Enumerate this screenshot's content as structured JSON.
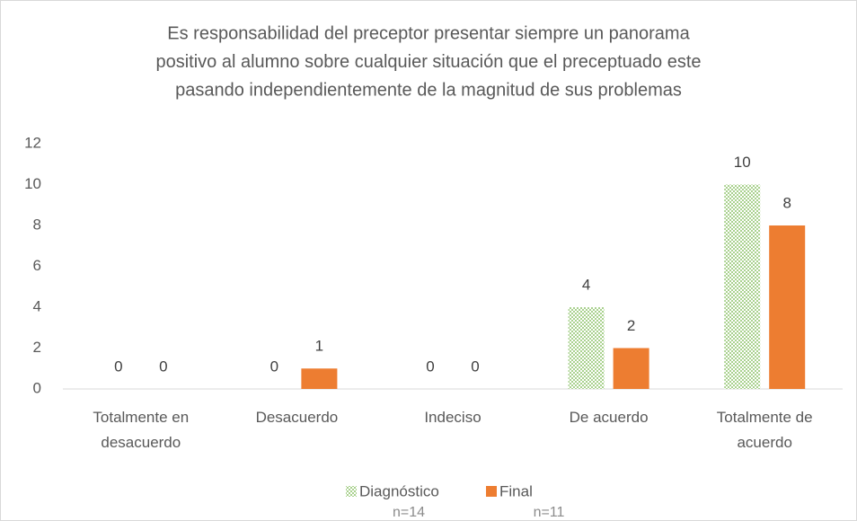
{
  "chart_data": {
    "type": "bar",
    "title": [
      "Es responsabilidad del preceptor presentar siempre un panorama",
      "positivo al alumno sobre cualquier situación que el preceptuado este",
      "pasando independientemente de la magnitud de sus problemas"
    ],
    "categories": [
      "Totalmente en desacuerdo",
      "Desacuerdo",
      "Indeciso",
      "De acuerdo",
      "Totalmente de acuerdo"
    ],
    "series": [
      {
        "name": "Diagnóstico",
        "note": "n=14",
        "color": "#a9d18e",
        "pattern": "checker",
        "values": [
          0,
          0,
          0,
          4,
          10
        ]
      },
      {
        "name": "Final",
        "note": "n=11",
        "color": "#ed7d31",
        "values": [
          0,
          1,
          0,
          2,
          8
        ]
      }
    ],
    "ylim": [
      0,
      12
    ],
    "yticks": [
      0,
      2,
      4,
      6,
      8,
      10,
      12
    ],
    "grid": false,
    "legend": "bottom"
  }
}
